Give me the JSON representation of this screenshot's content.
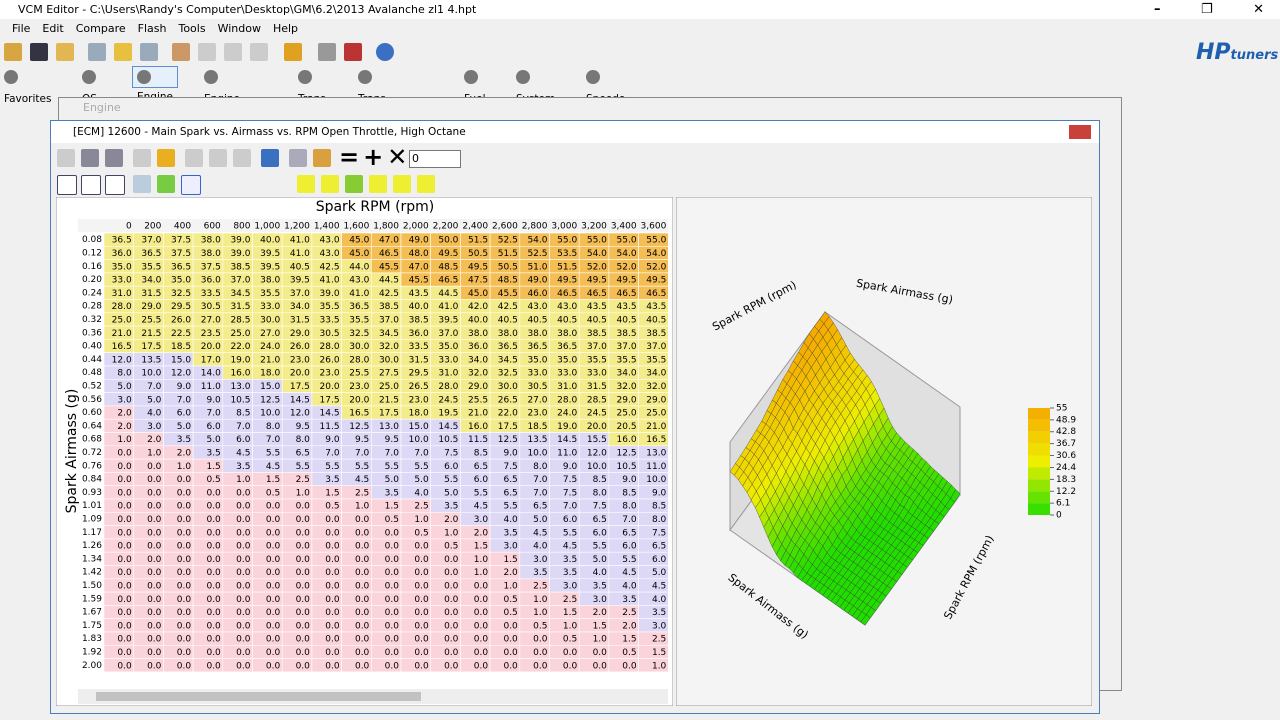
{
  "window": {
    "title": "VCM Editor - C:\\Users\\Randy's Computer\\Desktop\\GM\\6.2\\2013 Avalanche zl1 4.hpt"
  },
  "menu": [
    "File",
    "Edit",
    "Compare",
    "Flash",
    "Tools",
    "Window",
    "Help"
  ],
  "logo": {
    "hp": "HP",
    "tuners": "tuners"
  },
  "tabs": [
    "Favorites",
    "OS",
    "Engine",
    "Engine Diag",
    "Trans",
    "Trans Diag",
    "Fuel Sys",
    "System",
    "Speedo"
  ],
  "engine_window": {
    "title": "Engine"
  },
  "table_window": {
    "title": "[ECM] 12600 - Main Spark vs. Airmass vs. RPM Open Throttle, High Octane",
    "input": "0"
  },
  "table": {
    "x_label": "Spark RPM (rpm)",
    "y_label": "Spark Airmass (g)",
    "columns": [
      "0",
      "200",
      "400",
      "600",
      "800",
      "1,000",
      "1,200",
      "1,400",
      "1,600",
      "1,800",
      "2,000",
      "2,200",
      "2,400",
      "2,600",
      "2,800",
      "3,000",
      "3,200",
      "3,400",
      "3,600"
    ],
    "rows": [
      "0.08",
      "0.12",
      "0.16",
      "0.20",
      "0.24",
      "0.28",
      "0.32",
      "0.36",
      "0.40",
      "0.44",
      "0.48",
      "0.52",
      "0.56",
      "0.60",
      "0.64",
      "0.68",
      "0.72",
      "0.76",
      "0.84",
      "0.93",
      "1.01",
      "1.09",
      "1.17",
      "1.26",
      "1.34",
      "1.42",
      "1.50",
      "1.59",
      "1.67",
      "1.75",
      "1.83",
      "1.92",
      "2.00"
    ],
    "cells": [
      [
        "36.5",
        "37.0",
        "37.5",
        "38.0",
        "39.0",
        "40.0",
        "41.0",
        "43.0",
        "45.0",
        "47.0",
        "49.0",
        "50.0",
        "51.5",
        "52.5",
        "54.0",
        "55.0",
        "55.0",
        "55.0",
        "55.0"
      ],
      [
        "36.0",
        "36.5",
        "37.5",
        "38.0",
        "39.0",
        "39.5",
        "41.0",
        "43.0",
        "45.0",
        "46.5",
        "48.0",
        "49.5",
        "50.5",
        "51.5",
        "52.5",
        "53.5",
        "54.0",
        "54.0",
        "54.0"
      ],
      [
        "35.0",
        "35.5",
        "36.5",
        "37.5",
        "38.5",
        "39.5",
        "40.5",
        "42.5",
        "44.0",
        "45.5",
        "47.0",
        "48.5",
        "49.5",
        "50.5",
        "51.0",
        "51.5",
        "52.0",
        "52.0",
        "52.0"
      ],
      [
        "33.0",
        "34.0",
        "35.0",
        "36.0",
        "37.0",
        "38.0",
        "39.5",
        "41.0",
        "43.0",
        "44.5",
        "45.5",
        "46.5",
        "47.5",
        "48.5",
        "49.0",
        "49.5",
        "49.5",
        "49.5",
        "49.5"
      ],
      [
        "31.0",
        "31.5",
        "32.5",
        "33.5",
        "34.5",
        "35.5",
        "37.0",
        "39.0",
        "41.0",
        "42.5",
        "43.5",
        "44.5",
        "45.0",
        "45.5",
        "46.0",
        "46.5",
        "46.5",
        "46.5",
        "46.5"
      ],
      [
        "28.0",
        "29.0",
        "29.5",
        "30.5",
        "31.5",
        "33.0",
        "34.0",
        "35.5",
        "36.5",
        "38.5",
        "40.0",
        "41.0",
        "42.0",
        "42.5",
        "43.0",
        "43.0",
        "43.5",
        "43.5",
        "43.5"
      ],
      [
        "25.0",
        "25.5",
        "26.0",
        "27.0",
        "28.5",
        "30.0",
        "31.5",
        "33.5",
        "35.5",
        "37.0",
        "38.5",
        "39.5",
        "40.0",
        "40.5",
        "40.5",
        "40.5",
        "40.5",
        "40.5",
        "40.5"
      ],
      [
        "21.0",
        "21.5",
        "22.5",
        "23.5",
        "25.0",
        "27.0",
        "29.0",
        "30.5",
        "32.5",
        "34.5",
        "36.0",
        "37.0",
        "38.0",
        "38.0",
        "38.0",
        "38.0",
        "38.5",
        "38.5",
        "38.5"
      ],
      [
        "16.5",
        "17.5",
        "18.5",
        "20.0",
        "22.0",
        "24.0",
        "26.0",
        "28.0",
        "30.0",
        "32.0",
        "33.5",
        "35.0",
        "36.0",
        "36.5",
        "36.5",
        "36.5",
        "37.0",
        "37.0",
        "37.0"
      ],
      [
        "12.0",
        "13.5",
        "15.0",
        "17.0",
        "19.0",
        "21.0",
        "23.0",
        "26.0",
        "28.0",
        "30.0",
        "31.5",
        "33.0",
        "34.0",
        "34.5",
        "35.0",
        "35.0",
        "35.5",
        "35.5",
        "35.5"
      ],
      [
        "8.0",
        "10.0",
        "12.0",
        "14.0",
        "16.0",
        "18.0",
        "20.0",
        "23.0",
        "25.5",
        "27.5",
        "29.5",
        "31.0",
        "32.0",
        "32.5",
        "33.0",
        "33.0",
        "33.0",
        "34.0",
        "34.0"
      ],
      [
        "5.0",
        "7.0",
        "9.0",
        "11.0",
        "13.0",
        "15.0",
        "17.5",
        "20.0",
        "23.0",
        "25.0",
        "26.5",
        "28.0",
        "29.0",
        "30.0",
        "30.5",
        "31.0",
        "31.5",
        "32.0",
        "32.0"
      ],
      [
        "3.0",
        "5.0",
        "7.0",
        "9.0",
        "10.5",
        "12.5",
        "14.5",
        "17.5",
        "20.0",
        "21.5",
        "23.0",
        "24.5",
        "25.5",
        "26.5",
        "27.0",
        "28.0",
        "28.5",
        "29.0",
        "29.0"
      ],
      [
        "2.0",
        "4.0",
        "6.0",
        "7.0",
        "8.5",
        "10.0",
        "12.0",
        "14.5",
        "16.5",
        "17.5",
        "18.0",
        "19.5",
        "21.0",
        "22.0",
        "23.0",
        "24.0",
        "24.5",
        "25.0",
        "25.0"
      ],
      [
        "2.0",
        "3.0",
        "5.0",
        "6.0",
        "7.0",
        "8.0",
        "9.5",
        "11.5",
        "12.5",
        "13.0",
        "15.0",
        "14.5",
        "16.0",
        "17.5",
        "18.5",
        "19.0",
        "20.0",
        "20.5",
        "21.0"
      ],
      [
        "1.0",
        "2.0",
        "3.5",
        "5.0",
        "6.0",
        "7.0",
        "8.0",
        "9.0",
        "9.5",
        "9.5",
        "10.0",
        "10.5",
        "11.5",
        "12.5",
        "13.5",
        "14.5",
        "15.5",
        "16.0",
        "16.5"
      ],
      [
        "0.0",
        "1.0",
        "2.0",
        "3.5",
        "4.5",
        "5.5",
        "6.5",
        "7.0",
        "7.0",
        "7.0",
        "7.0",
        "7.5",
        "8.5",
        "9.0",
        "10.0",
        "11.0",
        "12.0",
        "12.5",
        "13.0"
      ],
      [
        "0.0",
        "0.0",
        "1.0",
        "1.5",
        "3.5",
        "4.5",
        "5.5",
        "5.5",
        "5.5",
        "5.5",
        "5.5",
        "6.0",
        "6.5",
        "7.5",
        "8.0",
        "9.0",
        "10.0",
        "10.5",
        "11.0"
      ],
      [
        "0.0",
        "0.0",
        "0.0",
        "0.5",
        "1.0",
        "1.5",
        "2.5",
        "3.5",
        "4.5",
        "5.0",
        "5.0",
        "5.5",
        "6.0",
        "6.5",
        "7.0",
        "7.5",
        "8.5",
        "9.0",
        "10.0"
      ],
      [
        "0.0",
        "0.0",
        "0.0",
        "0.0",
        "0.0",
        "0.5",
        "1.0",
        "1.5",
        "2.5",
        "3.5",
        "4.0",
        "5.0",
        "5.5",
        "6.5",
        "7.0",
        "7.5",
        "8.0",
        "8.5",
        "9.0"
      ],
      [
        "0.0",
        "0.0",
        "0.0",
        "0.0",
        "0.0",
        "0.0",
        "0.0",
        "0.5",
        "1.0",
        "1.5",
        "2.5",
        "3.5",
        "4.5",
        "5.5",
        "6.5",
        "7.0",
        "7.5",
        "8.0",
        "8.5"
      ],
      [
        "0.0",
        "0.0",
        "0.0",
        "0.0",
        "0.0",
        "0.0",
        "0.0",
        "0.0",
        "0.0",
        "0.5",
        "1.0",
        "2.0",
        "3.0",
        "4.0",
        "5.0",
        "6.0",
        "6.5",
        "7.0",
        "8.0"
      ],
      [
        "0.0",
        "0.0",
        "0.0",
        "0.0",
        "0.0",
        "0.0",
        "0.0",
        "0.0",
        "0.0",
        "0.0",
        "0.5",
        "1.0",
        "2.0",
        "3.5",
        "4.5",
        "5.5",
        "6.0",
        "6.5",
        "7.5"
      ],
      [
        "0.0",
        "0.0",
        "0.0",
        "0.0",
        "0.0",
        "0.0",
        "0.0",
        "0.0",
        "0.0",
        "0.0",
        "0.0",
        "0.5",
        "1.5",
        "3.0",
        "4.0",
        "4.5",
        "5.5",
        "6.0",
        "6.5"
      ],
      [
        "0.0",
        "0.0",
        "0.0",
        "0.0",
        "0.0",
        "0.0",
        "0.0",
        "0.0",
        "0.0",
        "0.0",
        "0.0",
        "0.0",
        "1.0",
        "1.5",
        "3.0",
        "3.5",
        "5.0",
        "5.5",
        "6.0"
      ],
      [
        "0.0",
        "0.0",
        "0.0",
        "0.0",
        "0.0",
        "0.0",
        "0.0",
        "0.0",
        "0.0",
        "0.0",
        "0.0",
        "0.0",
        "1.0",
        "2.0",
        "3.5",
        "3.5",
        "4.0",
        "4.5",
        "5.0"
      ],
      [
        "0.0",
        "0.0",
        "0.0",
        "0.0",
        "0.0",
        "0.0",
        "0.0",
        "0.0",
        "0.0",
        "0.0",
        "0.0",
        "0.0",
        "0.0",
        "1.0",
        "2.5",
        "3.0",
        "3.5",
        "4.0",
        "4.5"
      ],
      [
        "0.0",
        "0.0",
        "0.0",
        "0.0",
        "0.0",
        "0.0",
        "0.0",
        "0.0",
        "0.0",
        "0.0",
        "0.0",
        "0.0",
        "0.0",
        "0.5",
        "1.0",
        "2.5",
        "3.0",
        "3.5",
        "4.0"
      ],
      [
        "0.0",
        "0.0",
        "0.0",
        "0.0",
        "0.0",
        "0.0",
        "0.0",
        "0.0",
        "0.0",
        "0.0",
        "0.0",
        "0.0",
        "0.0",
        "0.5",
        "1.0",
        "1.5",
        "2.0",
        "2.5",
        "3.5"
      ],
      [
        "0.0",
        "0.0",
        "0.0",
        "0.0",
        "0.0",
        "0.0",
        "0.0",
        "0.0",
        "0.0",
        "0.0",
        "0.0",
        "0.0",
        "0.0",
        "0.0",
        "0.5",
        "1.0",
        "1.5",
        "2.0",
        "3.0"
      ],
      [
        "0.0",
        "0.0",
        "0.0",
        "0.0",
        "0.0",
        "0.0",
        "0.0",
        "0.0",
        "0.0",
        "0.0",
        "0.0",
        "0.0",
        "0.0",
        "0.0",
        "0.0",
        "0.5",
        "1.0",
        "1.5",
        "2.5"
      ],
      [
        "0.0",
        "0.0",
        "0.0",
        "0.0",
        "0.0",
        "0.0",
        "0.0",
        "0.0",
        "0.0",
        "0.0",
        "0.0",
        "0.0",
        "0.0",
        "0.0",
        "0.0",
        "0.0",
        "0.0",
        "0.5",
        "1.5"
      ],
      [
        "0.0",
        "0.0",
        "0.0",
        "0.0",
        "0.0",
        "0.0",
        "0.0",
        "0.0",
        "0.0",
        "0.0",
        "0.0",
        "0.0",
        "0.0",
        "0.0",
        "0.0",
        "0.0",
        "0.0",
        "0.0",
        "1.0"
      ]
    ]
  },
  "plot3d": {
    "colorbar": [
      55,
      48.9,
      42.8,
      36.7,
      30.6,
      24.4,
      18.3,
      12.2,
      6.1,
      0
    ]
  }
}
